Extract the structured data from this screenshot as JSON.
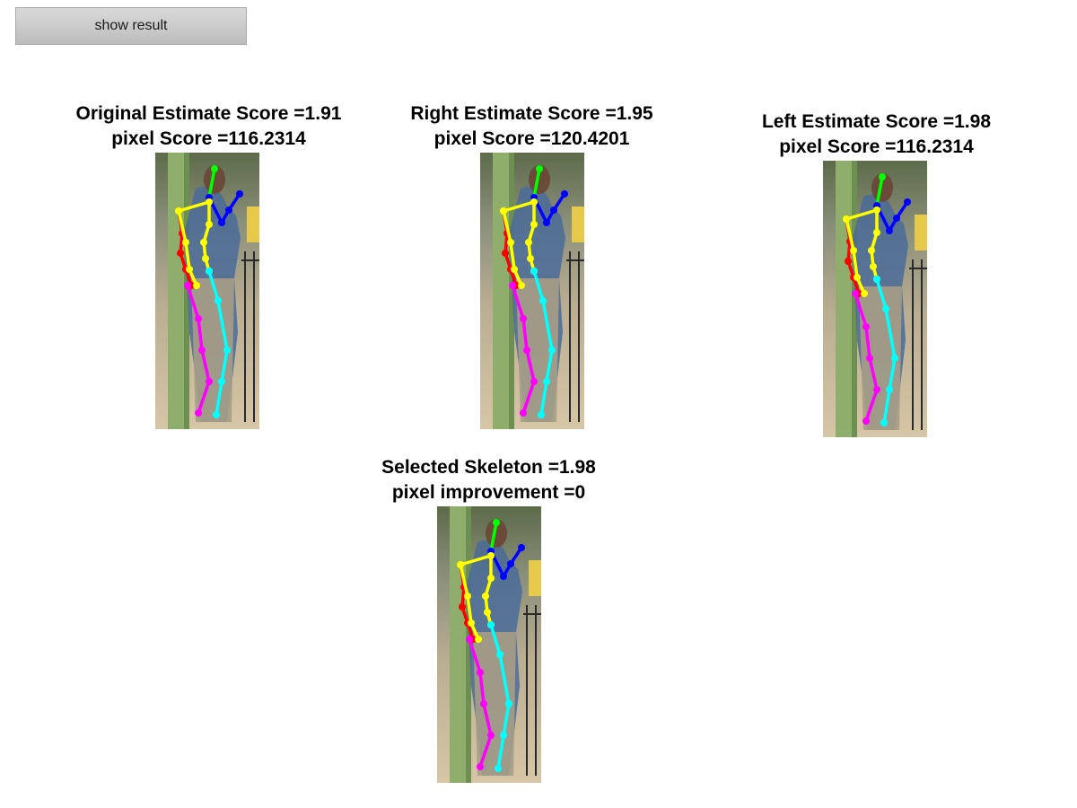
{
  "toolbar": {
    "show_result_label": "show result"
  },
  "panels": [
    {
      "title_line1": "Original Estimate Score =1.91",
      "title_line2": "pixel Score =116.2314"
    },
    {
      "title_line1": "Right Estimate Score =1.95",
      "title_line2": "pixel Score =120.4201"
    },
    {
      "title_line1": "Left Estimate Score =1.98",
      "title_line2": "pixel Score =116.2314"
    },
    {
      "title_line1": "Selected Skeleton =1.98",
      "title_line2": "pixel improvement =0"
    }
  ],
  "colors": {
    "head": "#00ff00",
    "right_arm": "#0000ff",
    "left_arm": "#ff0000",
    "torso": "#ffff00",
    "right_leg": "#00ffff",
    "left_leg": "#ff00ff"
  }
}
